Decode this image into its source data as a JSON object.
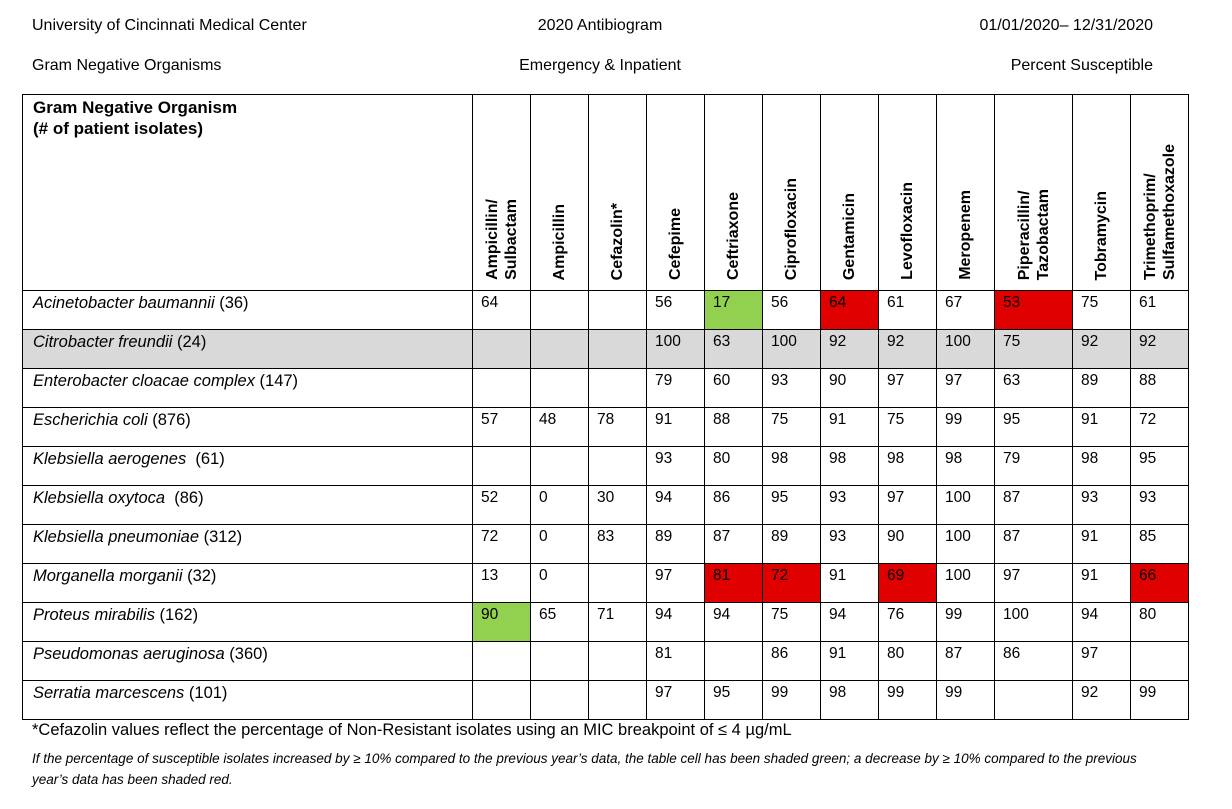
{
  "header": {
    "institution": "University of Cincinnati Medical Center",
    "title": "2020 Antibiogram",
    "date_range": "01/01/2020– 12/31/2020",
    "category": "Gram Negative Organisms",
    "setting": "Emergency & Inpatient",
    "metric": "Percent Susceptible"
  },
  "table": {
    "org_header_line1": "Gram Negative Organism",
    "org_header_line2": "(# of patient isolates)",
    "columns": [
      "Ampicillin/\nSulbactam",
      "Ampicillin",
      "Cefazolin*",
      "Cefepime",
      "Ceftriaxone",
      "Ciprofloxacin",
      "Gentamicin",
      "Levofloxacin",
      "Meropenem",
      "Piperacillin/\nTazobactam",
      "Tobramycin",
      "Trimethoprim/\nSulfamethoxazole"
    ],
    "rows": [
      {
        "organism": "Acinetobacter baumannii",
        "count": " (36)",
        "values": [
          "64",
          "",
          "",
          "56",
          "17",
          "56",
          "64",
          "61",
          "67",
          "53",
          "75",
          "61"
        ],
        "shade": [
          "",
          "",
          "",
          "",
          "green",
          "",
          "red",
          "",
          "",
          "red",
          "",
          ""
        ],
        "gray": false
      },
      {
        "organism": "Citrobacter freundii",
        "count": " (24)",
        "values": [
          "",
          "",
          "",
          "100",
          "63",
          "100",
          "92",
          "92",
          "100",
          "75",
          "92",
          "92"
        ],
        "shade": [
          "",
          "",
          "",
          "",
          "",
          "",
          "",
          "",
          "",
          "",
          "",
          ""
        ],
        "gray": true
      },
      {
        "organism": "Enterobacter cloacae complex",
        "count": " (147)",
        "values": [
          "",
          "",
          "",
          "79",
          "60",
          "93",
          "90",
          "97",
          "97",
          "63",
          "89",
          "88"
        ],
        "shade": [
          "",
          "",
          "",
          "",
          "",
          "",
          "",
          "",
          "",
          "",
          "",
          ""
        ],
        "gray": false
      },
      {
        "organism": "Escherichia coli",
        "count": " (876)",
        "values": [
          "57",
          "48",
          "78",
          "91",
          "88",
          "75",
          "91",
          "75",
          "99",
          "95",
          "91",
          "72"
        ],
        "shade": [
          "",
          "",
          "",
          "",
          "",
          "",
          "",
          "",
          "",
          "",
          "",
          ""
        ],
        "gray": false
      },
      {
        "organism": "Klebsiella aerogenes",
        "count": "  (61)",
        "values": [
          "",
          "",
          "",
          "93",
          "80",
          "98",
          "98",
          "98",
          "98",
          "79",
          "98",
          "95"
        ],
        "shade": [
          "",
          "",
          "",
          "",
          "",
          "",
          "",
          "",
          "",
          "",
          "",
          ""
        ],
        "gray": false
      },
      {
        "organism": "Klebsiella oxytoca",
        "count": "  (86)",
        "values": [
          "52",
          "0",
          "30",
          "94",
          "86",
          "95",
          "93",
          "97",
          "100",
          "87",
          "93",
          "93"
        ],
        "shade": [
          "",
          "",
          "",
          "",
          "",
          "",
          "",
          "",
          "",
          "",
          "",
          ""
        ],
        "gray": false
      },
      {
        "organism": "Klebsiella pneumoniae",
        "count": " (312)",
        "values": [
          "72",
          "0",
          "83",
          "89",
          "87",
          "89",
          "93",
          "90",
          "100",
          "87",
          "91",
          "85"
        ],
        "shade": [
          "",
          "",
          "",
          "",
          "",
          "",
          "",
          "",
          "",
          "",
          "",
          ""
        ],
        "gray": false
      },
      {
        "organism": "Morganella morganii",
        "count": " (32)",
        "values": [
          "13",
          "0",
          "",
          "97",
          "81",
          "72",
          "91",
          "69",
          "100",
          "97",
          "91",
          "66"
        ],
        "shade": [
          "",
          "",
          "",
          "",
          "red",
          "red",
          "",
          "red",
          "",
          "",
          "",
          "red"
        ],
        "gray": false
      },
      {
        "organism": "Proteus mirabilis",
        "count": " (162)",
        "values": [
          "90",
          "65",
          "71",
          "94",
          "94",
          "75",
          "94",
          "76",
          "99",
          "100",
          "94",
          "80"
        ],
        "shade": [
          "green",
          "",
          "",
          "",
          "",
          "",
          "",
          "",
          "",
          "",
          "",
          ""
        ],
        "gray": false
      },
      {
        "organism": "Pseudomonas aeruginosa",
        "count": " (360)",
        "values": [
          "",
          "",
          "",
          "81",
          "",
          "86",
          "91",
          "80",
          "87",
          "86",
          "97",
          ""
        ],
        "shade": [
          "",
          "",
          "",
          "",
          "",
          "",
          "",
          "",
          "",
          "",
          "",
          ""
        ],
        "gray": false
      },
      {
        "organism": "Serratia marcescens",
        "count": " (101)",
        "values": [
          "",
          "",
          "",
          "97",
          "95",
          "99",
          "98",
          "99",
          "99",
          "",
          "92",
          "99"
        ],
        "shade": [
          "",
          "",
          "",
          "",
          "",
          "",
          "",
          "",
          "",
          "",
          "",
          ""
        ],
        "gray": false
      }
    ]
  },
  "footnotes": {
    "cefazolin_note": "*Cefazolin values reflect the percentage of Non-Resistant isolates using an MIC breakpoint of ≤ 4 µg/mL",
    "shading_note": "If the percentage of susceptible isolates increased by ≥ 10% compared to the previous year’s data, the table cell has been shaded green; a decrease by ≥ 10% compared to the previous year’s data has been shaded red."
  }
}
